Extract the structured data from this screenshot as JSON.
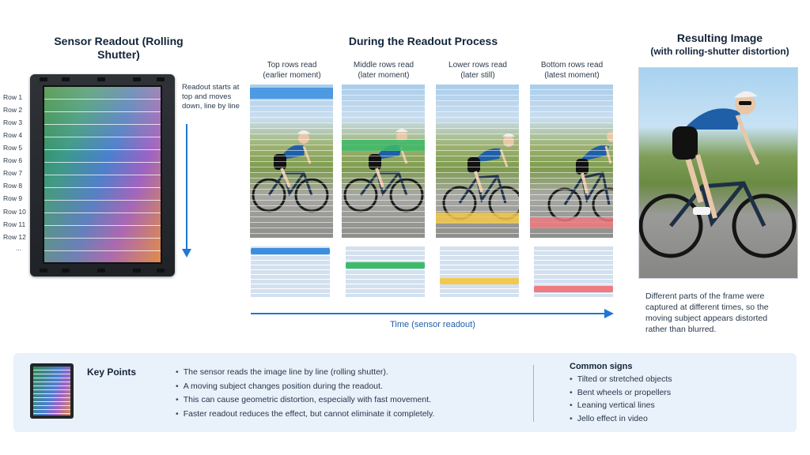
{
  "sensor": {
    "title": "Sensor Readout (Rolling Shutter)",
    "rows": [
      "Row 1",
      "Row 2",
      "Row 3",
      "Row 4",
      "Row 5",
      "Row 6",
      "Row 7",
      "Row 8",
      "Row 9",
      "Row 10",
      "Row 11",
      "Row 12",
      "..."
    ],
    "readout_note": "Readout starts at top and moves down, line by line"
  },
  "process": {
    "title": "During the Readout Process",
    "frames": [
      {
        "line1": "Top rows read",
        "line2": "(earlier moment)",
        "band_color": "#3a8fe0"
      },
      {
        "line1": "Middle rows read",
        "line2": "(later moment)",
        "band_color": "#3cba6a"
      },
      {
        "line1": "Lower rows read",
        "line2": "(later still)",
        "band_color": "#f2c94c"
      },
      {
        "line1": "Bottom rows read",
        "line2": "(latest moment)",
        "band_color": "#ef7a80"
      }
    ],
    "time_label": "Time (sensor readout)"
  },
  "result": {
    "title_line1": "Resulting Image",
    "title_line2": "(with rolling-shutter distortion)",
    "description": "Different parts of the frame were captured at different times, so the moving subject appears distorted rather than blurred."
  },
  "key_points": {
    "title": "Key Points",
    "items": [
      "The sensor reads the image line by line (rolling shutter).",
      "A moving subject changes position during the readout.",
      "This can cause geometric distortion, especially with fast movement.",
      "Faster readout reduces the effect, but cannot eliminate it completely."
    ]
  },
  "common_signs": {
    "title": "Common signs",
    "items": [
      "Tilted or stretched objects",
      "Bent wheels or propellers",
      "Leaning vertical lines",
      "Jello effect in video"
    ]
  },
  "colors": {
    "accent": "#1f78d1"
  }
}
